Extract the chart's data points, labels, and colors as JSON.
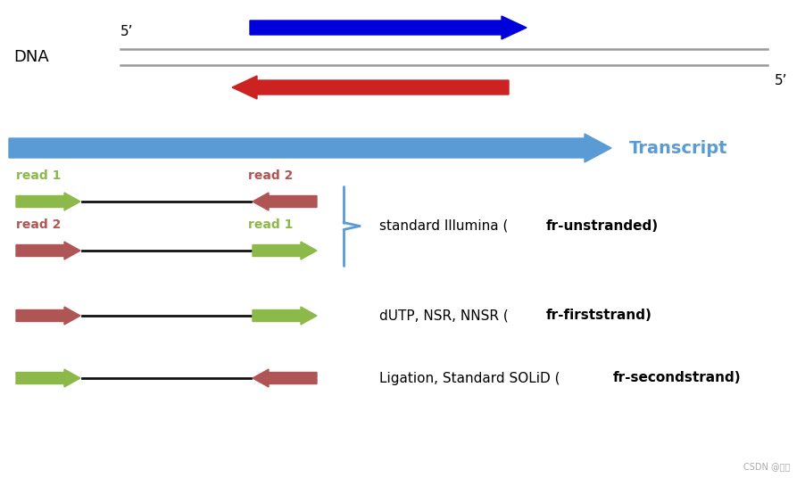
{
  "bg_color": "#ffffff",
  "dna_label": "DNA",
  "five_prime": "5’",
  "transcript_label": "Transcript",
  "transcript_color": "#5b9bd5",
  "blue_arrow_color": "#0000dd",
  "red_arrow_color": "#cc2222",
  "gray_line_color": "#999999",
  "green_color": "#8db84a",
  "dark_red_color": "#b05555",
  "black_color": "#111111",
  "brace_color": "#5b9bd5",
  "watermark": "CSDN @陆沙",
  "figsize": [
    9.03,
    5.36
  ],
  "dpi": 100
}
